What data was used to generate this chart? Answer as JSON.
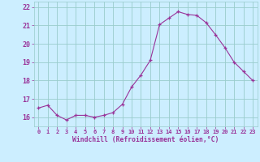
{
  "x": [
    0,
    1,
    2,
    3,
    4,
    5,
    6,
    7,
    8,
    9,
    10,
    11,
    12,
    13,
    14,
    15,
    16,
    17,
    18,
    19,
    20,
    21,
    22,
    23
  ],
  "y": [
    16.5,
    16.65,
    16.1,
    15.85,
    16.1,
    16.1,
    16.0,
    16.1,
    16.25,
    16.7,
    17.65,
    18.3,
    19.1,
    21.05,
    21.4,
    21.75,
    21.6,
    21.55,
    21.15,
    20.5,
    19.8,
    19.0,
    18.5,
    18.0
  ],
  "line_color": "#993399",
  "marker_color": "#993399",
  "bg_color": "#cceeff",
  "grid_color": "#99cccc",
  "xlabel": "Windchill (Refroidissement éolien,°C)",
  "xlabel_color": "#993399",
  "tick_color": "#993399",
  "ylim": [
    15.5,
    22.3
  ],
  "xlim": [
    -0.5,
    23.5
  ],
  "yticks": [
    16,
    17,
    18,
    19,
    20,
    21,
    22
  ],
  "xticks": [
    0,
    1,
    2,
    3,
    4,
    5,
    6,
    7,
    8,
    9,
    10,
    11,
    12,
    13,
    14,
    15,
    16,
    17,
    18,
    19,
    20,
    21,
    22,
    23
  ]
}
